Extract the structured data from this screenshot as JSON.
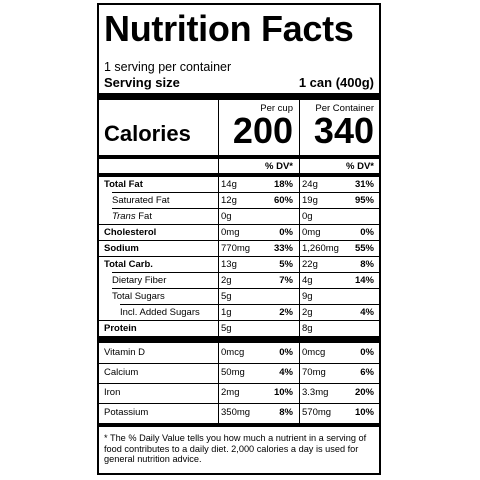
{
  "label": {
    "title": "Nutrition Facts",
    "servings_per_container": "1 serving per container",
    "serving_size_label": "Serving size",
    "serving_size_value": "1 can (400g)",
    "col_per_cup": "Per cup",
    "col_per_container": "Per Container",
    "calories_label": "Calories",
    "calories_per_cup": "200",
    "calories_per_container": "340",
    "dv_header": "% DV*",
    "footnote": "* The % Daily Value tells you how much a nutrient in a serving of food contributes to a daily diet. 2,000 calories a day is used for general nutrition advice."
  },
  "nutrients": [
    {
      "name": "Total Fat",
      "cup_amt": "14g",
      "cup_dv": "18%",
      "cont_amt": "24g",
      "cont_dv": "31%"
    },
    {
      "name": "Saturated Fat",
      "cup_amt": "12g",
      "cup_dv": "60%",
      "cont_amt": "19g",
      "cont_dv": "95%"
    },
    {
      "name": "Trans",
      "name_suffix": " Fat",
      "cup_amt": "0g",
      "cup_dv": "",
      "cont_amt": "0g",
      "cont_dv": ""
    },
    {
      "name": "Cholesterol",
      "cup_amt": "0mg",
      "cup_dv": "0%",
      "cont_amt": "0mg",
      "cont_dv": "0%"
    },
    {
      "name": "Sodium",
      "cup_amt": "770mg",
      "cup_dv": "33%",
      "cont_amt": "1,260mg",
      "cont_dv": "55%"
    },
    {
      "name": "Total Carb.",
      "cup_amt": "13g",
      "cup_dv": "5%",
      "cont_amt": "22g",
      "cont_dv": "8%"
    },
    {
      "name": "Dietary Fiber",
      "cup_amt": "2g",
      "cup_dv": "7%",
      "cont_amt": "4g",
      "cont_dv": "14%"
    },
    {
      "name": "Total Sugars",
      "cup_amt": "5g",
      "cup_dv": "",
      "cont_amt": "9g",
      "cont_dv": ""
    },
    {
      "name": "Incl. Added Sugars",
      "cup_amt": "1g",
      "cup_dv": "2%",
      "cont_amt": "2g",
      "cont_dv": "4%"
    },
    {
      "name": "Protein",
      "cup_amt": "5g",
      "cup_dv": "",
      "cont_amt": "8g",
      "cont_dv": ""
    }
  ],
  "vitamins": [
    {
      "name": "Vitamin D",
      "cup_amt": "0mcg",
      "cup_dv": "0%",
      "cont_amt": "0mcg",
      "cont_dv": "0%"
    },
    {
      "name": "Calcium",
      "cup_amt": "50mg",
      "cup_dv": "4%",
      "cont_amt": "70mg",
      "cont_dv": "6%"
    },
    {
      "name": "Iron",
      "cup_amt": "2mg",
      "cup_dv": "10%",
      "cont_amt": "3.3mg",
      "cont_dv": "20%"
    },
    {
      "name": "Potassium",
      "cup_amt": "350mg",
      "cup_dv": "8%",
      "cont_amt": "570mg",
      "cont_dv": "10%"
    }
  ]
}
